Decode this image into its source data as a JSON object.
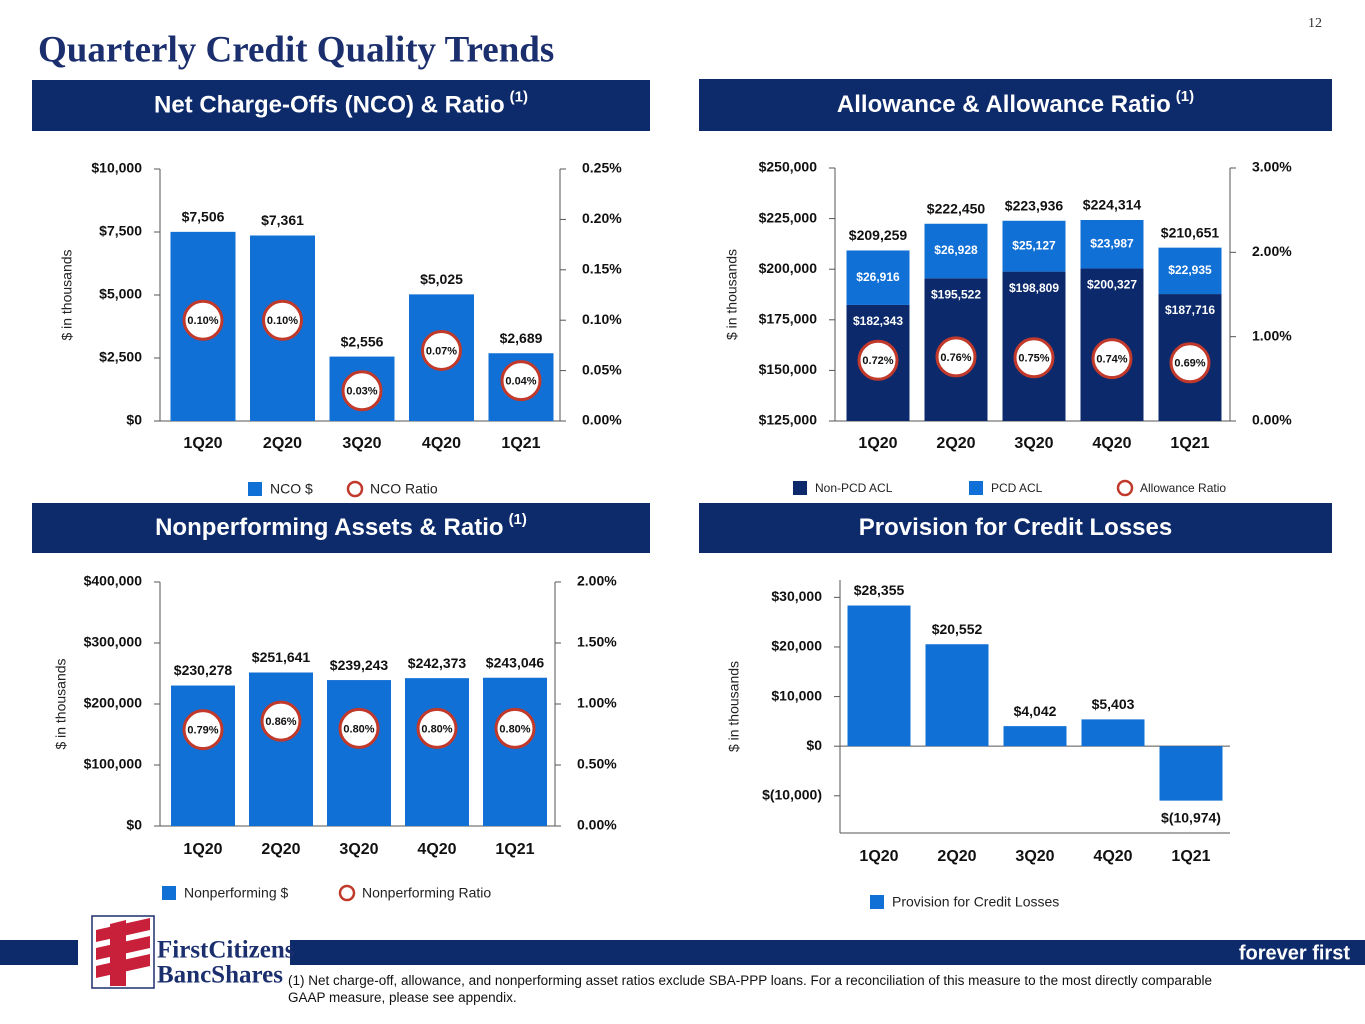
{
  "page_number": "12",
  "title": "Quarterly Credit Quality Trends",
  "footnote": "(1) Net charge-off, allowance, and nonperforming asset ratios exclude SBA-PPP loans. For a reconciliation of this measure to the most directly comparable GAAP measure, please see appendix.",
  "logo": {
    "line1": "FirstCitizens",
    "line2": "BancShares"
  },
  "tagline": "forever first",
  "chart_data": [
    {
      "type": "bar",
      "title": "Net Charge-Offs (NCO) & Ratio",
      "title_note": "(1)",
      "y_label": "$ in thousands",
      "categories": [
        "1Q20",
        "2Q20",
        "3Q20",
        "4Q20",
        "1Q21"
      ],
      "series": [
        {
          "name": "NCO $",
          "color": "#1170d6",
          "values": [
            7506,
            7361,
            2556,
            5025,
            2689
          ],
          "value_labels": [
            "$7,506",
            "$7,361",
            "$2,556",
            "$5,025",
            "$2,689"
          ]
        },
        {
          "name": "NCO Ratio",
          "color": "#c0392b",
          "axis": "y2",
          "marker": "circle",
          "values": [
            0.1,
            0.1,
            0.03,
            0.07,
            0.04
          ],
          "value_labels": [
            "0.10%",
            "0.10%",
            "0.03%",
            "0.07%",
            "0.04%"
          ]
        }
      ],
      "ylim": [
        0,
        10000
      ],
      "yticks": [
        {
          "value": 0,
          "label": "$0"
        },
        {
          "value": 2500,
          "label": "$2,500"
        },
        {
          "value": 5000,
          "label": "$5,000"
        },
        {
          "value": 7500,
          "label": "$7,500"
        },
        {
          "value": 10000,
          "label": "$10,000"
        }
      ],
      "y2lim": [
        0,
        0.25
      ],
      "y2ticks": [
        {
          "value": 0,
          "label": "0.00%"
        },
        {
          "value": 0.05,
          "label": "0.05%"
        },
        {
          "value": 0.1,
          "label": "0.10%"
        },
        {
          "value": 0.15,
          "label": "0.15%"
        },
        {
          "value": 0.2,
          "label": "0.20%"
        },
        {
          "value": 0.25,
          "label": "0.25%"
        }
      ]
    },
    {
      "type": "stacked_bar",
      "title": "Allowance & Allowance Ratio",
      "title_note": "(1)",
      "y_label": "$ in thousands",
      "categories": [
        "1Q20",
        "2Q20",
        "3Q20",
        "4Q20",
        "1Q21"
      ],
      "series": [
        {
          "name": "Non-PCD ACL",
          "color": "#0c2a6b",
          "values": [
            182343,
            195522,
            198809,
            200327,
            187716
          ],
          "value_labels": [
            "$182,343",
            "$195,522",
            "$198,809",
            "$200,327",
            "$187,716"
          ]
        },
        {
          "name": "PCD ACL",
          "color": "#1170d6",
          "values": [
            26916,
            26928,
            25127,
            23987,
            22935
          ],
          "value_labels": [
            "$26,916",
            "$26,928",
            "$25,127",
            "$23,987",
            "$22,935"
          ]
        },
        {
          "name": "Allowance Ratio",
          "color": "#c0392b",
          "axis": "y2",
          "marker": "circle",
          "values": [
            0.72,
            0.76,
            0.75,
            0.74,
            0.69
          ],
          "value_labels": [
            "0.72%",
            "0.76%",
            "0.75%",
            "0.74%",
            "0.69%"
          ]
        }
      ],
      "totals": [
        209259,
        222450,
        223936,
        224314,
        210651
      ],
      "total_labels": [
        "$209,259",
        "$222,450",
        "$223,936",
        "$224,314",
        "$210,651"
      ],
      "ylim": [
        125000,
        250000
      ],
      "yticks": [
        {
          "value": 125000,
          "label": "$125,000"
        },
        {
          "value": 150000,
          "label": "$150,000"
        },
        {
          "value": 175000,
          "label": "$175,000"
        },
        {
          "value": 200000,
          "label": "$200,000"
        },
        {
          "value": 225000,
          "label": "$225,000"
        },
        {
          "value": 250000,
          "label": "$250,000"
        }
      ],
      "y2lim": [
        0,
        3
      ],
      "y2ticks": [
        {
          "value": 0,
          "label": "0.00%"
        },
        {
          "value": 1,
          "label": "1.00%"
        },
        {
          "value": 2,
          "label": "2.00%"
        },
        {
          "value": 3,
          "label": "3.00%"
        }
      ]
    },
    {
      "type": "bar",
      "title": "Nonperforming Assets & Ratio",
      "title_note": "(1)",
      "y_label": "$ in thousands",
      "categories": [
        "1Q20",
        "2Q20",
        "3Q20",
        "4Q20",
        "1Q21"
      ],
      "series": [
        {
          "name": "Nonperforming $",
          "color": "#1170d6",
          "values": [
            230278,
            251641,
            239243,
            242373,
            243046
          ],
          "value_labels": [
            "$230,278",
            "$251,641",
            "$239,243",
            "$242,373",
            "$243,046"
          ]
        },
        {
          "name": "Nonperforming Ratio",
          "color": "#c0392b",
          "axis": "y2",
          "marker": "circle",
          "values": [
            0.79,
            0.86,
            0.8,
            0.8,
            0.8
          ],
          "value_labels": [
            "0.79%",
            "0.86%",
            "0.80%",
            "0.80%",
            "0.80%"
          ]
        }
      ],
      "ylim": [
        0,
        400000
      ],
      "yticks": [
        {
          "value": 0,
          "label": "$0"
        },
        {
          "value": 100000,
          "label": "$100,000"
        },
        {
          "value": 200000,
          "label": "$200,000"
        },
        {
          "value": 300000,
          "label": "$300,000"
        },
        {
          "value": 400000,
          "label": "$400,000"
        }
      ],
      "y2lim": [
        0,
        2
      ],
      "y2ticks": [
        {
          "value": 0,
          "label": "0.00%"
        },
        {
          "value": 0.5,
          "label": "0.50%"
        },
        {
          "value": 1,
          "label": "1.00%"
        },
        {
          "value": 1.5,
          "label": "1.50%"
        },
        {
          "value": 2,
          "label": "2.00%"
        }
      ]
    },
    {
      "type": "bar",
      "title": "Provision for Credit Losses",
      "y_label": "$ in thousands",
      "categories": [
        "1Q20",
        "2Q20",
        "3Q20",
        "4Q20",
        "1Q21"
      ],
      "series": [
        {
          "name": "Provision for Credit Losses",
          "color": "#1170d6",
          "values": [
            28355,
            20552,
            4042,
            5403,
            -10974
          ],
          "value_labels": [
            "$28,355",
            "$20,552",
            "$4,042",
            "$5,403",
            "$(10,974)"
          ]
        }
      ],
      "ylim": [
        -17500,
        33500
      ],
      "yticks": [
        {
          "value": -10000,
          "label": "$(10,000)"
        },
        {
          "value": 0,
          "label": "$0"
        },
        {
          "value": 10000,
          "label": "$10,000"
        },
        {
          "value": 20000,
          "label": "$20,000"
        },
        {
          "value": 30000,
          "label": "$30,000"
        }
      ]
    }
  ]
}
